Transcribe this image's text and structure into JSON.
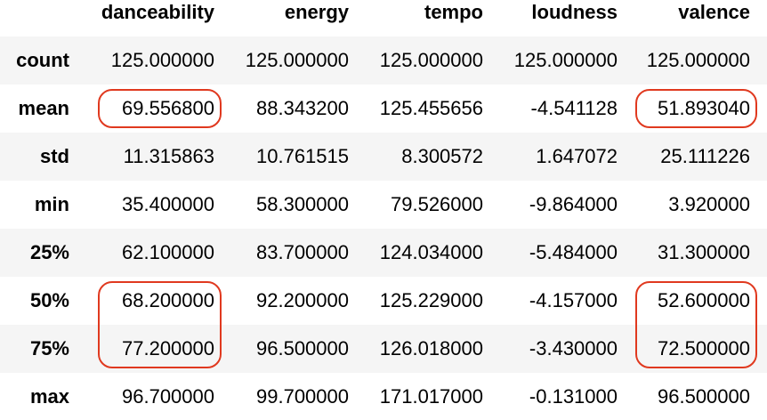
{
  "table": {
    "columns": [
      "danceability",
      "energy",
      "tempo",
      "loudness",
      "valence"
    ],
    "rows": [
      {
        "label": "count",
        "values": [
          "125.000000",
          "125.000000",
          "125.000000",
          "125.000000",
          "125.000000"
        ]
      },
      {
        "label": "mean",
        "values": [
          "69.556800",
          "88.343200",
          "125.455656",
          "-4.541128",
          "51.893040"
        ]
      },
      {
        "label": "std",
        "values": [
          "11.315863",
          "10.761515",
          "8.300572",
          "1.647072",
          "25.111226"
        ]
      },
      {
        "label": "min",
        "values": [
          "35.400000",
          "58.300000",
          "79.526000",
          "-9.864000",
          "3.920000"
        ]
      },
      {
        "label": "25%",
        "values": [
          "62.100000",
          "83.700000",
          "124.034000",
          "-5.484000",
          "31.300000"
        ]
      },
      {
        "label": "50%",
        "values": [
          "68.200000",
          "92.200000",
          "125.229000",
          "-4.157000",
          "52.600000"
        ]
      },
      {
        "label": "75%",
        "values": [
          "77.200000",
          "96.500000",
          "126.018000",
          "-3.430000",
          "72.500000"
        ]
      },
      {
        "label": "max",
        "values": [
          "96.700000",
          "99.700000",
          "171.017000",
          "-0.131000",
          "96.500000"
        ]
      }
    ]
  },
  "highlights": {
    "color": "#e0391f"
  }
}
